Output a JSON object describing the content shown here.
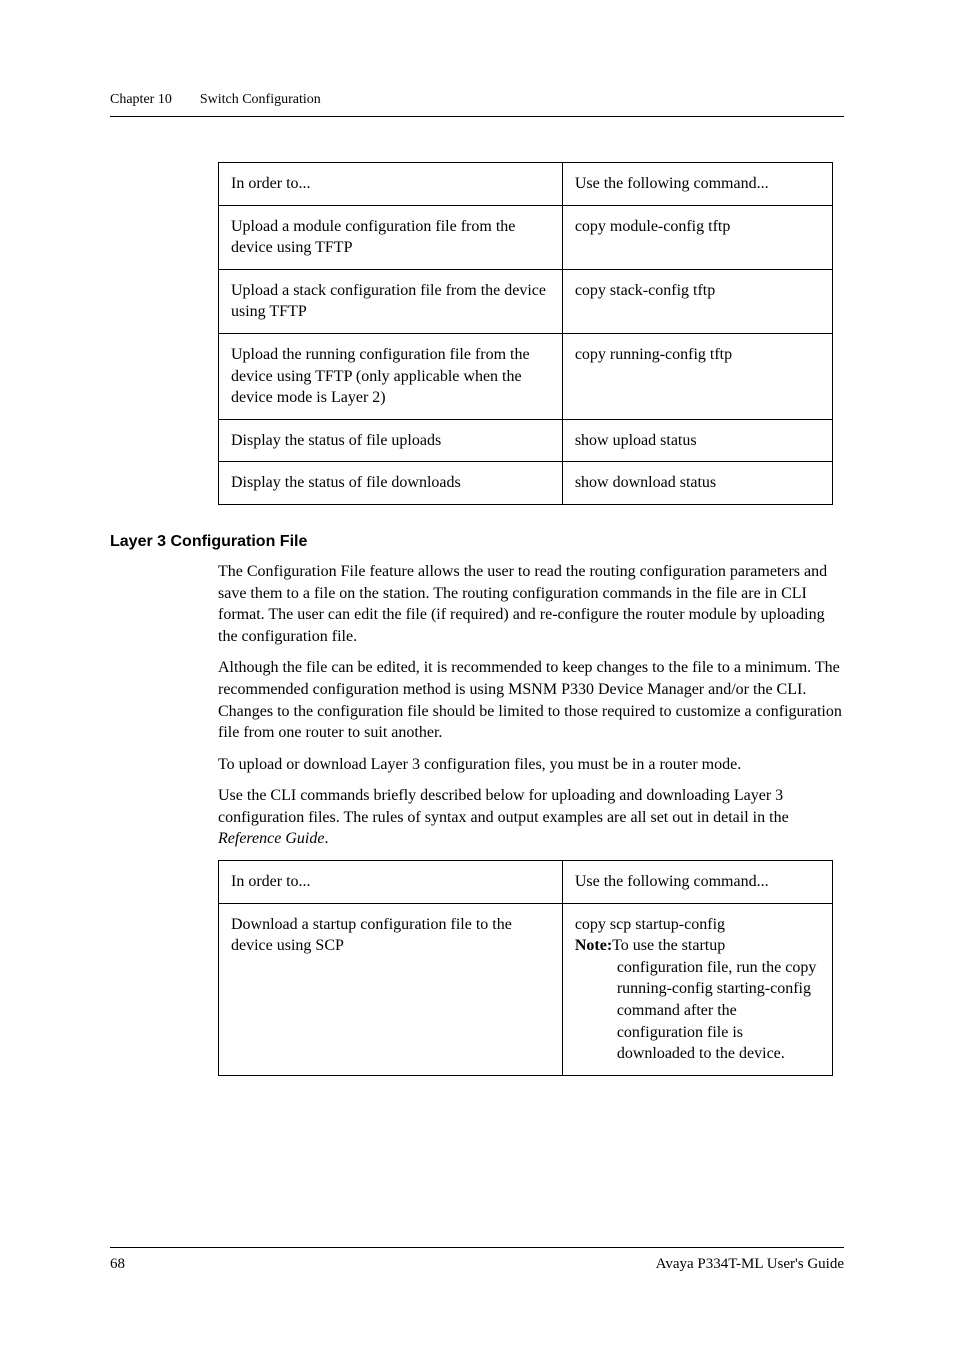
{
  "header": {
    "chapter": "Chapter 10",
    "title": "Switch Configuration"
  },
  "table1": {
    "head_col1": "In order to...",
    "head_col2": "Use the following command...",
    "rows": [
      {
        "c1": "Upload a module configuration file from the device using TFTP",
        "c2": "copy module-config tftp"
      },
      {
        "c1": "Upload a stack configuration file from the device using TFTP",
        "c2": "copy stack-config tftp"
      },
      {
        "c1": "Upload the running configuration file from the device using TFTP (only applicable when the device mode is Layer 2)",
        "c2": "copy running-config tftp"
      },
      {
        "c1": "Display the status of file uploads",
        "c2": "show upload status"
      },
      {
        "c1": "Display the status of file downloads",
        "c2": "show download status"
      }
    ]
  },
  "section": {
    "heading": "Layer 3 Configuration File",
    "p1": "The Configuration File feature allows the user to read the routing configuration parameters and save them to a file on the station. The routing configuration commands in the file are in CLI format. The user can edit the file (if required) and re-configure the router module by uploading the configuration file.",
    "p2": "Although the file can be edited, it is recommended to keep changes to the file to a minimum. The recommended configuration method is using MSNM P330 Device Manager and/or the CLI. Changes to the configuration file should be limited to those required to customize a configuration file from one router to suit another.",
    "p3": " To upload or download Layer 3 configuration files, you must be in a router mode.",
    "p4a": "Use the CLI commands briefly described below for uploading and downloading Layer 3 configuration files. The rules of syntax and output examples are all set out in detail in the ",
    "p4b": "Reference Guide",
    "p4c": "."
  },
  "table2": {
    "head_col1": "In order to...",
    "head_col2": "Use the following command...",
    "row1_c1": "Download a startup configuration file to the device using SCP",
    "row1_c2_line1": "copy scp startup-config",
    "row1_c2_note_label": "Note:",
    "row1_c2_note_text": "To use the startup",
    "row1_c2_indent": "configuration file, run the copy running-config starting-config command after the configuration file is downloaded to the device."
  },
  "footer": {
    "page": "68",
    "guide": "Avaya P334T-ML User's Guide"
  }
}
